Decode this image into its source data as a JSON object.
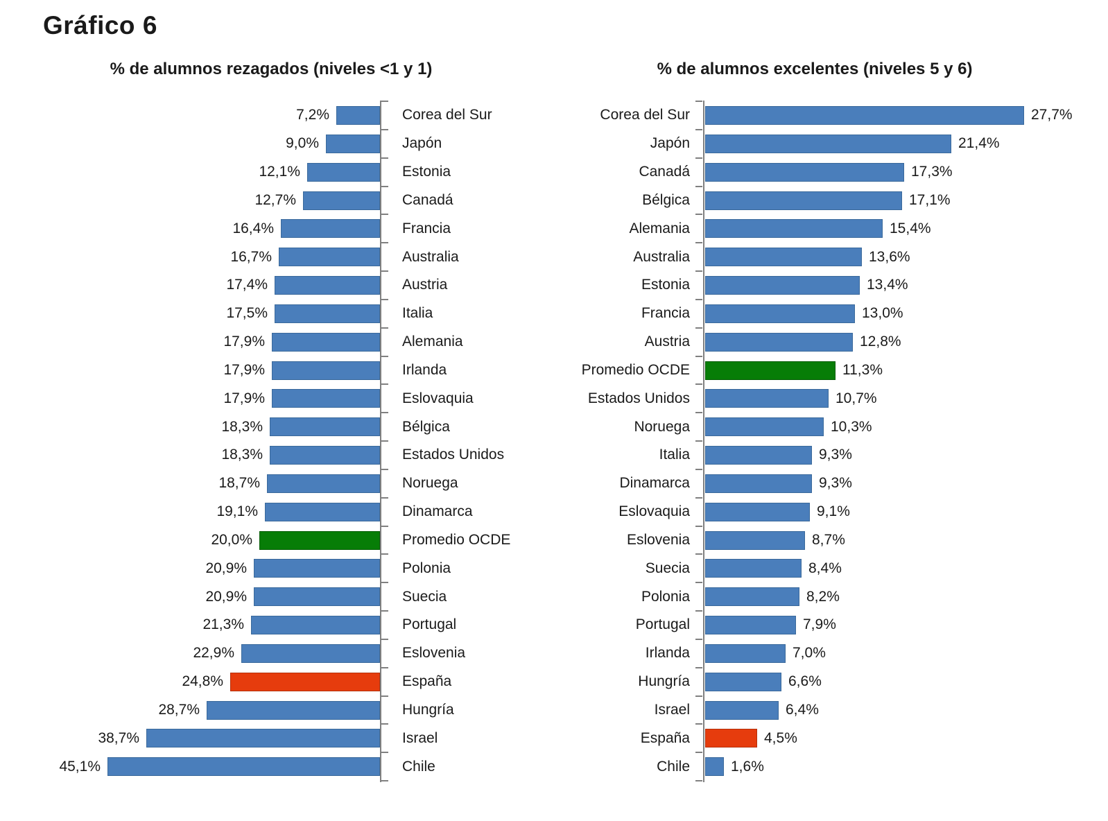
{
  "page_title": "Gráfico 6",
  "colors": {
    "blue": "#4A7EBB",
    "blue_border": "#3A699B",
    "green": "#077D07",
    "green_border": "#055C05",
    "red": "#E63C0D",
    "red_border": "#B5300B",
    "axis": "#808080",
    "text": "#1A1A1A"
  },
  "chart_data": [
    {
      "type": "bar",
      "direction": "left",
      "title": "% de alumnos rezagados (niveles <1 y 1)",
      "unit": "%",
      "xlim": [
        0,
        45.1
      ],
      "grid": false,
      "categories": [
        "Corea del Sur",
        "Japón",
        "Estonia",
        "Canadá",
        "Francia",
        "Australia",
        "Austria",
        "Italia",
        "Alemania",
        "Irlanda",
        "Eslovaquia",
        "Bélgica",
        "Estados Unidos",
        "Noruega",
        "Dinamarca",
        "Promedio OCDE",
        "Polonia",
        "Suecia",
        "Portugal",
        "Eslovenia",
        "España",
        "Hungría",
        "Israel",
        "Chile"
      ],
      "values": [
        7.2,
        9.0,
        12.1,
        12.7,
        16.4,
        16.7,
        17.4,
        17.5,
        17.9,
        17.9,
        17.9,
        18.3,
        18.3,
        18.7,
        19.1,
        20.0,
        20.9,
        20.9,
        21.3,
        22.9,
        24.8,
        28.7,
        38.7,
        45.1
      ],
      "value_labels": [
        "7,2%",
        "9,0%",
        "12,1%",
        "12,7%",
        "16,4%",
        "16,7%",
        "17,4%",
        "17,5%",
        "17,9%",
        "17,9%",
        "17,9%",
        "18,3%",
        "18,3%",
        "18,7%",
        "19,1%",
        "20,0%",
        "20,9%",
        "20,9%",
        "21,3%",
        "22,9%",
        "24,8%",
        "28,7%",
        "38,7%",
        "45,1%"
      ],
      "bar_colors": [
        "blue",
        "blue",
        "blue",
        "blue",
        "blue",
        "blue",
        "blue",
        "blue",
        "blue",
        "blue",
        "blue",
        "blue",
        "blue",
        "blue",
        "blue",
        "green",
        "blue",
        "blue",
        "blue",
        "blue",
        "red",
        "blue",
        "blue",
        "blue"
      ]
    },
    {
      "type": "bar",
      "direction": "right",
      "title": "% de alumnos excelentes (niveles 5 y 6)",
      "unit": "%",
      "xlim": [
        0,
        27.7
      ],
      "grid": false,
      "categories": [
        "Corea del Sur",
        "Japón",
        "Canadá",
        "Bélgica",
        "Alemania",
        "Australia",
        "Estonia",
        "Francia",
        "Austria",
        "Promedio OCDE",
        "Estados Unidos",
        "Noruega",
        "Italia",
        "Dinamarca",
        "Eslovaquia",
        "Eslovenia",
        "Suecia",
        "Polonia",
        "Portugal",
        "Irlanda",
        "Hungría",
        "Israel",
        "España",
        "Chile"
      ],
      "values": [
        27.7,
        21.4,
        17.3,
        17.1,
        15.4,
        13.6,
        13.4,
        13.0,
        12.8,
        11.3,
        10.7,
        10.3,
        9.3,
        9.3,
        9.1,
        8.7,
        8.4,
        8.2,
        7.9,
        7.0,
        6.6,
        6.4,
        4.5,
        1.6
      ],
      "value_labels": [
        "27,7%",
        "21,4%",
        "17,3%",
        "17,1%",
        "15,4%",
        "13,6%",
        "13,4%",
        "13,0%",
        "12,8%",
        "11,3%",
        "10,7%",
        "10,3%",
        "9,3%",
        "9,3%",
        "9,1%",
        "8,7%",
        "8,4%",
        "8,2%",
        "7,9%",
        "7,0%",
        "6,6%",
        "6,4%",
        "4,5%",
        "1,6%"
      ],
      "bar_colors": [
        "blue",
        "blue",
        "blue",
        "blue",
        "blue",
        "blue",
        "blue",
        "blue",
        "blue",
        "green",
        "blue",
        "blue",
        "blue",
        "blue",
        "blue",
        "blue",
        "blue",
        "blue",
        "blue",
        "blue",
        "blue",
        "blue",
        "red",
        "blue"
      ]
    }
  ]
}
